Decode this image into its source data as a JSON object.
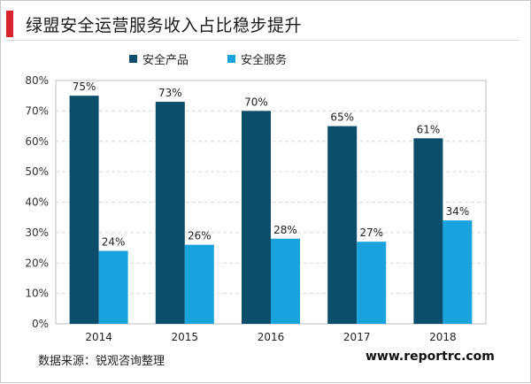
{
  "title": "绿盟安全运营服务收入占比稳步提升",
  "accent_color": "#d9232d",
  "chart_data": {
    "type": "bar",
    "title": "",
    "xlabel": "",
    "ylabel": "",
    "categories": [
      "2014",
      "2015",
      "2016",
      "2017",
      "2018"
    ],
    "ylim": [
      0,
      80
    ],
    "yticks": [
      "0%",
      "10%",
      "20%",
      "30%",
      "40%",
      "50%",
      "60%",
      "70%",
      "80%"
    ],
    "grid": true,
    "legend_position": "top",
    "series": [
      {
        "name": "安全产品",
        "color": "#0b4d6a",
        "values": [
          75,
          73,
          70,
          65,
          61
        ],
        "labels": [
          "75%",
          "73%",
          "70%",
          "65%",
          "61%"
        ]
      },
      {
        "name": "安全服务",
        "color": "#18a3dc",
        "values": [
          24,
          26,
          28,
          27,
          34
        ],
        "labels": [
          "24%",
          "26%",
          "28%",
          "27%",
          "34%"
        ]
      }
    ]
  },
  "footer": {
    "source": "数据来源：锐观咨询整理",
    "url": "www.reportrc.com"
  }
}
